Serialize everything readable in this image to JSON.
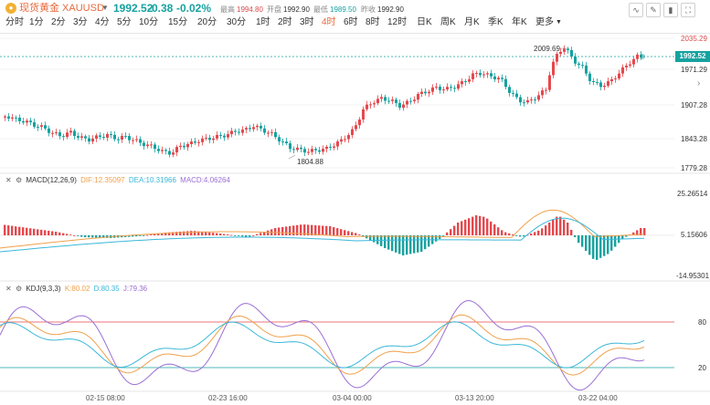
{
  "header": {
    "symbol_icon": "gold-coin-icon",
    "symbol": "现货黄金 XAUUSD",
    "dropdown_icon": "caret-down-icon",
    "price": "1992.52",
    "change": "-0.38",
    "change_pct": "-0.02%",
    "high_label": "最高",
    "high": "1994.80",
    "open_label": "开盘",
    "open": "1992.90",
    "low_label": "最低",
    "low": "1989.50",
    "prevclose_label": "昨收",
    "prevclose": "1992.90"
  },
  "toolbar": {
    "icons": [
      "line-chart-icon",
      "pencil-icon",
      "candlestick-icon",
      "fullscreen-icon"
    ]
  },
  "periods": [
    "分时",
    "1分",
    "2分",
    "3分",
    "4分",
    "5分",
    "10分",
    "15分",
    "20分",
    "30分",
    "1时",
    "2时",
    "3时",
    "4时",
    "6时",
    "8时",
    "12时",
    "日K",
    "周K",
    "月K",
    "季K",
    "年K",
    "更多"
  ],
  "active_period": "4时",
  "more_icon": "caret-down-icon",
  "main_chart": {
    "y_labels": [
      "2035.29",
      "1971.29",
      "1907.28",
      "1843.28",
      "1779.28"
    ],
    "current_price": "1992.52",
    "high_mark": "2009.69",
    "low_mark": "1804.88",
    "expand_icon": "chevron-right-icon"
  },
  "macd": {
    "close_icon": "close-icon",
    "settings_icon": "gear-icon",
    "title": "MACD(12,26,9)",
    "dif": "DIF:12.35097",
    "dea": "DEA:10.31966",
    "macd": "MACD:4.06264",
    "y_labels": [
      "25.26514",
      "5.15606",
      "-14.95301"
    ]
  },
  "kdj": {
    "close_icon": "close-icon",
    "settings_icon": "gear-icon",
    "title": "KDJ(9,3,3)",
    "k": "K:80.02",
    "d": "D:80.35",
    "j": "J:79.36",
    "y_labels": [
      "80",
      "20"
    ]
  },
  "x_labels": [
    "02-15 08:00",
    "02-23 16:00",
    "03-04 00:00",
    "03-13 20:00",
    "03-22 04:00"
  ],
  "colors": {
    "up": "#e5484d",
    "down": "#16a2a0",
    "accent": "#e8683c",
    "dif": "#f0a04b",
    "dea": "#3bb7d9",
    "j": "#9b6fd4"
  }
}
